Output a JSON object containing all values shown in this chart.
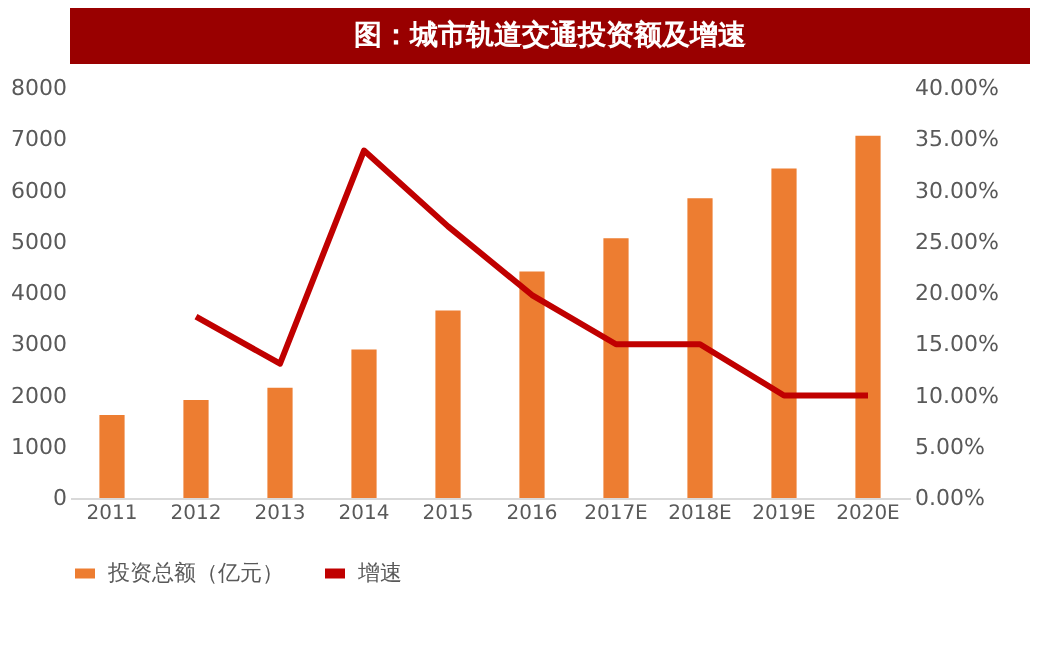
{
  "chart_data": {
    "type": "bar",
    "title": "图：城市轨道交通投资额及增速",
    "categories": [
      "2011",
      "2012",
      "2013",
      "2014",
      "2015",
      "2016",
      "2017E",
      "2018E",
      "2019E",
      "2020E"
    ],
    "series": [
      {
        "name": "投资总额（亿元）",
        "color": "#ed7d31",
        "values": [
          1620,
          1910,
          2150,
          2900,
          3660,
          4420,
          5070,
          5850,
          6430,
          7070
        ]
      },
      {
        "name": "增速",
        "type": "line",
        "axis": "y2",
        "color": "#c00000",
        "values": [
          null,
          17.7,
          13.1,
          33.9,
          26.5,
          19.8,
          15.0,
          15.0,
          10.0,
          10.0
        ]
      }
    ],
    "ylim": [
      0,
      8000
    ],
    "yticks": [
      0,
      1000,
      2000,
      3000,
      4000,
      5000,
      6000,
      7000,
      8000
    ],
    "y2lim": [
      0,
      40
    ],
    "y2ticks": [
      {
        "value": 0,
        "label": "0.00%"
      },
      {
        "value": 5,
        "label": "5.00%"
      },
      {
        "value": 10,
        "label": "10.00%"
      },
      {
        "value": 15,
        "label": "15.00%"
      },
      {
        "value": 20,
        "label": "20.00%"
      },
      {
        "value": 25,
        "label": "25.00%"
      },
      {
        "value": 30,
        "label": "30.00%"
      },
      {
        "value": 35,
        "label": "35.00%"
      },
      {
        "value": 40,
        "label": "40.00%"
      }
    ],
    "grid": false,
    "legend": "bottom"
  }
}
